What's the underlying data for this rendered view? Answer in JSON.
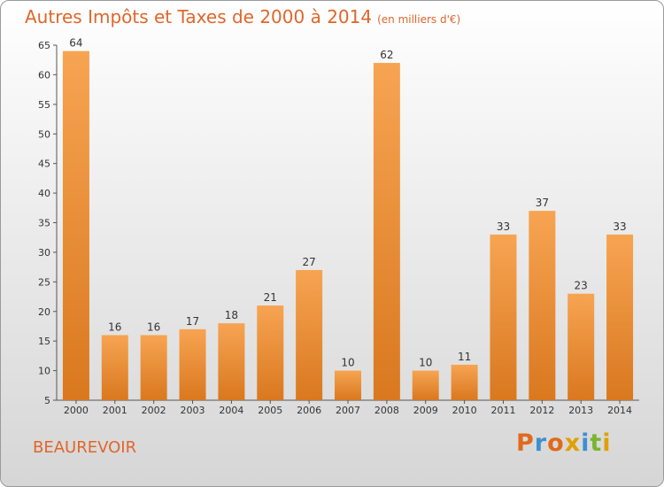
{
  "title": "Autres Impôts et Taxes de 2000 à 2014",
  "subtitle": "(en milliers d'€)",
  "location": "BEAUREVOIR",
  "brand": "Proxiti",
  "colors": {
    "title": "#e0662a",
    "bar_light": "#f7a452",
    "bar_dark": "#d9781f",
    "brand_letters": [
      "#e06a1c",
      "#3e8fd0",
      "#e06a1c",
      "#e0a000",
      "#3e8fd0",
      "#7ab530",
      "#e0a000"
    ]
  },
  "chart_data": {
    "type": "bar",
    "categories": [
      "2000",
      "2001",
      "2002",
      "2003",
      "2004",
      "2005",
      "2006",
      "2007",
      "2008",
      "2009",
      "2010",
      "2011",
      "2012",
      "2013",
      "2014"
    ],
    "values": [
      64,
      16,
      16,
      17,
      18,
      21,
      27,
      10,
      62,
      10,
      11,
      33,
      37,
      23,
      33
    ],
    "title": "Autres Impôts et Taxes de 2000 à 2014",
    "subtitle": "(en milliers d'€)",
    "xlabel": "",
    "ylabel": "",
    "ylim": [
      5,
      65
    ],
    "yticks": [
      5,
      10,
      15,
      20,
      25,
      30,
      35,
      40,
      45,
      50,
      55,
      60,
      65
    ],
    "grid": false,
    "data_labels": true
  }
}
